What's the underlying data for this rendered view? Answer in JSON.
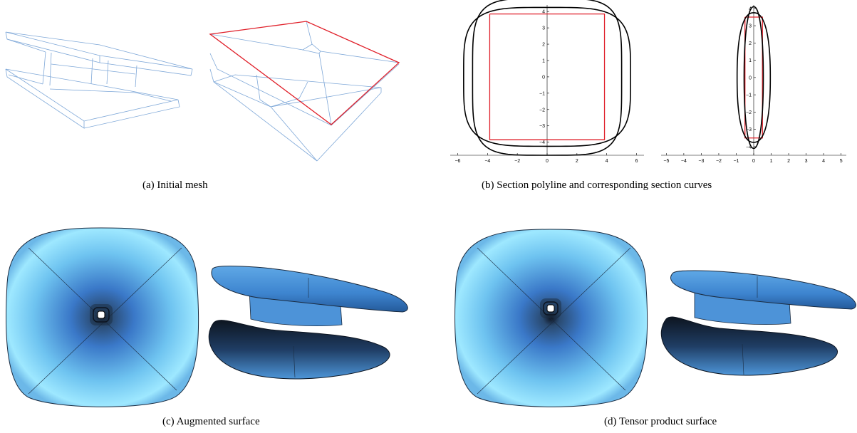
{
  "figure": {
    "captions": {
      "a": "(a)  Initial mesh",
      "b": "(b)  Section polyline and corresponding section curves",
      "c": "(c)  Augmented surface",
      "d": "(d)  Tensor product surface"
    }
  },
  "chart_data": [
    {
      "type": "line",
      "title": "",
      "xlabel": "",
      "ylabel": "",
      "xlim": [
        -6.5,
        6.5
      ],
      "ylim": [
        -4.8,
        4.4
      ],
      "xticks": [
        -6,
        -4,
        -2,
        0,
        2,
        4,
        6
      ],
      "yticks": [
        -4,
        -3,
        -2,
        -1,
        0,
        1,
        2,
        3,
        4
      ],
      "series": [
        {
          "kind": "polyline",
          "color": "#e0202a",
          "points": [
            [
              -3.85,
              3.85
            ],
            [
              3.85,
              3.85
            ],
            [
              3.85,
              -3.85
            ],
            [
              -3.85,
              -3.85
            ],
            [
              -3.85,
              3.85
            ]
          ]
        },
        {
          "kind": "closed-curve",
          "color": "#000000",
          "half_width": 5.0,
          "half_height": 4.8,
          "exponent": 4.5
        },
        {
          "kind": "closed-curve",
          "color": "#000000",
          "half_width": 5.6,
          "half_height": 4.25,
          "exponent": 4.0
        }
      ]
    },
    {
      "type": "line",
      "title": "",
      "xlabel": "",
      "ylabel": "",
      "xlim": [
        -5.3,
        5.3
      ],
      "ylim": [
        -4.5,
        4.2
      ],
      "xticks": [
        -5,
        -4,
        -3,
        -2,
        -1,
        0,
        1,
        2,
        3,
        4,
        5
      ],
      "yticks": [
        -4,
        -3,
        -2,
        -1,
        0,
        1,
        2,
        3,
        4
      ],
      "series": [
        {
          "kind": "polyline",
          "color": "#e0202a",
          "points": [
            [
              -0.5,
              3.5
            ],
            [
              0.5,
              3.5
            ],
            [
              0.5,
              -3.5
            ],
            [
              -0.5,
              -3.5
            ],
            [
              -0.5,
              3.5
            ]
          ]
        },
        {
          "kind": "closed-curve",
          "color": "#000000",
          "half_width": 0.55,
          "half_height": 4.1,
          "exponent": 2.2
        },
        {
          "kind": "closed-curve",
          "color": "#000000",
          "half_width": 0.95,
          "half_height": 3.75,
          "exponent": 2.4
        }
      ]
    }
  ]
}
